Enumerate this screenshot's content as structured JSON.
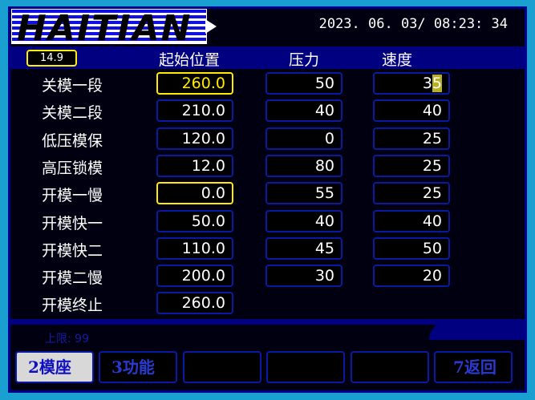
{
  "logo": "HAITIAN",
  "datetime": "2023. 06. 03/ 08:23: 34",
  "indicator": "14.9",
  "headers": {
    "position": "起始位置",
    "pressure": "压力",
    "speed": "速度"
  },
  "rows": [
    {
      "label": "关模一段",
      "position": "260.0",
      "pressure": "50",
      "speed": "35"
    },
    {
      "label": "关模二段",
      "position": "210.0",
      "pressure": "40",
      "speed": "40"
    },
    {
      "label": "低压模保",
      "position": "120.0",
      "pressure": "0",
      "speed": "25"
    },
    {
      "label": "高压锁模",
      "position": "12.0",
      "pressure": "80",
      "speed": "25"
    },
    {
      "label": "开模一慢",
      "position": "0.0",
      "pressure": "55",
      "speed": "25"
    },
    {
      "label": "开模快一",
      "position": "50.0",
      "pressure": "40",
      "speed": "40"
    },
    {
      "label": "开模快二",
      "position": "110.0",
      "pressure": "45",
      "speed": "50"
    },
    {
      "label": "开模二慢",
      "position": "200.0",
      "pressure": "30",
      "speed": "20"
    },
    {
      "label": "开模终止",
      "position": "260.0"
    }
  ],
  "limit": "上限: 99",
  "buttons": [
    "2模座",
    "3功能",
    "",
    "",
    "",
    "7返回"
  ],
  "colors": {
    "frame": "#1aa0d0",
    "bar": "#000080",
    "highlight": "#ffea00"
  }
}
